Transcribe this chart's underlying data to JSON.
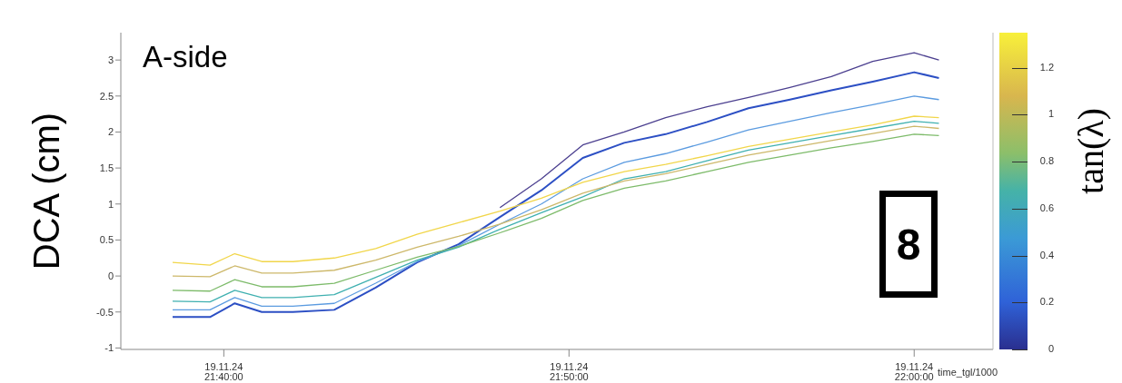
{
  "chart_data": {
    "type": "line",
    "annotations": [
      "A-side",
      "8"
    ],
    "xlabel": "time_tgl/1000",
    "ylabel": "DCA (cm)",
    "clabel": "tan(λ)",
    "x": [
      "--11-19T21:38:31",
      "--11-19T21:39:36",
      "--11-19T21:40:19",
      "--11-19T21:41:06",
      "--11-19T21:42:00",
      "--11-19T21:43:12",
      "--11-19T21:44:24",
      "--11-19T21:45:36",
      "--11-19T21:46:48",
      "--11-19T21:48:00",
      "--11-19T21:49:12",
      "--11-19T21:50:24",
      "--11-19T21:51:36",
      "--11-19T21:52:48",
      "--11-19T21:54:00",
      "--11-19T21:55:12",
      "--11-19T21:56:24",
      "--11-19T21:57:36",
      "--11-19T21:58:48",
      "--11-19T22:00:00",
      "--11-19T22:00:43"
    ],
    "series": [
      {
        "color": "#4b3f8f",
        "values": [
          null,
          null,
          null,
          null,
          null,
          null,
          null,
          null,
          null,
          0.95,
          1.35,
          1.82,
          2.0,
          2.2,
          2.35,
          2.48,
          2.62,
          2.77,
          2.98,
          3.1,
          3.0
        ]
      },
      {
        "color": "#2c4fc4",
        "values": [
          -0.57,
          -0.57,
          -0.38,
          -0.5,
          -0.5,
          -0.47,
          -0.16,
          0.19,
          0.44,
          0.82,
          1.19,
          1.64,
          1.85,
          1.97,
          2.14,
          2.33,
          2.45,
          2.58,
          2.7,
          2.83,
          2.75
        ]
      },
      {
        "color": "#5b9be0",
        "values": [
          -0.47,
          -0.47,
          -0.3,
          -0.42,
          -0.42,
          -0.38,
          -0.1,
          0.2,
          0.42,
          0.72,
          1.0,
          1.35,
          1.58,
          1.7,
          1.86,
          2.03,
          2.15,
          2.27,
          2.38,
          2.5,
          2.45
        ]
      },
      {
        "color": "#3fb0b0",
        "values": [
          -0.35,
          -0.36,
          -0.2,
          -0.3,
          -0.3,
          -0.26,
          -0.02,
          0.22,
          0.4,
          0.65,
          0.88,
          1.1,
          1.35,
          1.45,
          1.6,
          1.75,
          1.85,
          1.95,
          2.05,
          2.15,
          2.12
        ]
      },
      {
        "color": "#7dbb6a",
        "values": [
          -0.2,
          -0.21,
          -0.05,
          -0.15,
          -0.15,
          -0.1,
          0.08,
          0.26,
          0.41,
          0.6,
          0.8,
          1.05,
          1.22,
          1.32,
          1.45,
          1.58,
          1.68,
          1.78,
          1.87,
          1.97,
          1.95
        ]
      },
      {
        "color": "#cdb86a",
        "values": [
          0.0,
          -0.01,
          0.14,
          0.04,
          0.04,
          0.08,
          0.22,
          0.4,
          0.55,
          0.72,
          0.92,
          1.15,
          1.32,
          1.42,
          1.55,
          1.68,
          1.78,
          1.88,
          1.98,
          2.08,
          2.05
        ]
      },
      {
        "color": "#f1d64a",
        "values": [
          0.19,
          0.15,
          0.31,
          0.2,
          0.2,
          0.25,
          0.38,
          0.58,
          0.74,
          0.9,
          1.08,
          1.3,
          1.45,
          1.55,
          1.67,
          1.8,
          1.9,
          2.0,
          2.1,
          2.22,
          2.2
        ]
      }
    ],
    "xlim": [
      "--11-19T21:37:01",
      "--11-19T22:02:17"
    ],
    "xticks": [
      {
        "value": "--11-19T21:40",
        "label": "19.11.24\n21:40:00"
      },
      {
        "value": "--11-19T21:50",
        "label": "19.11.24\n21:50:00"
      },
      {
        "value": "--11-19T22:00",
        "label": "19.11.24\n22:00:00"
      }
    ],
    "ylim": [
      -1.02,
      3.38
    ],
    "yticks": [
      -1,
      -0.5,
      0,
      0.5,
      1,
      1.5,
      2,
      2.5,
      3
    ],
    "clim": [
      0,
      1.35
    ],
    "cticks": [
      0,
      0.2,
      0.4,
      0.6,
      0.8,
      1,
      1.2
    ],
    "grid": false,
    "legend": false,
    "marker": "none",
    "line_style": "solid"
  }
}
